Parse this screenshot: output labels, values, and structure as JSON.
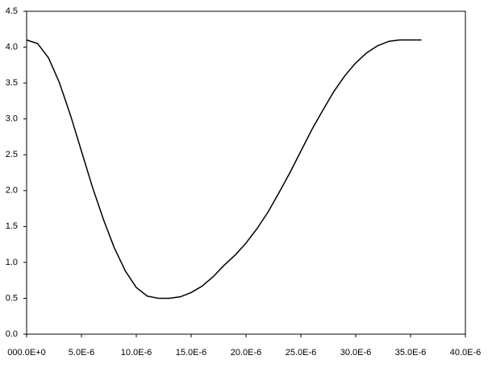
{
  "chart_data": {
    "type": "line",
    "x": [
      0,
      1e-06,
      2e-06,
      3e-06,
      4e-06,
      5e-06,
      6e-06,
      7e-06,
      8e-06,
      9e-06,
      1e-05,
      1.1e-05,
      1.2e-05,
      1.3e-05,
      1.4e-05,
      1.5e-05,
      1.6e-05,
      1.7e-05,
      1.8e-05,
      1.9e-05,
      2e-05,
      2.1e-05,
      2.2e-05,
      2.3e-05,
      2.4e-05,
      2.5e-05,
      2.6e-05,
      2.7e-05,
      2.8e-05,
      2.9e-05,
      3e-05,
      3.1e-05,
      3.2e-05,
      3.3e-05,
      3.4e-05,
      3.5e-05,
      3.6e-05
    ],
    "series": [
      {
        "color": "#000000",
        "values": [
          4.1,
          4.05,
          3.85,
          3.5,
          3.05,
          2.55,
          2.05,
          1.6,
          1.2,
          0.88,
          0.65,
          0.53,
          0.5,
          0.5,
          0.52,
          0.58,
          0.67,
          0.8,
          0.96,
          1.1,
          1.27,
          1.47,
          1.7,
          1.97,
          2.25,
          2.55,
          2.85,
          3.12,
          3.38,
          3.6,
          3.78,
          3.92,
          4.02,
          4.08,
          4.1,
          4.1,
          4.1
        ]
      }
    ],
    "xlim": [
      0,
      4e-05
    ],
    "xticks": [
      {
        "value": 0,
        "label": "000.0E+0"
      },
      {
        "value": 5e-06,
        "label": "5.0E-6"
      },
      {
        "value": 1e-05,
        "label": "10.0E-6"
      },
      {
        "value": 1.5e-05,
        "label": "15.0E-6"
      },
      {
        "value": 2e-05,
        "label": "20.0E-6"
      },
      {
        "value": 2.5e-05,
        "label": "25.0E-6"
      },
      {
        "value": 3e-05,
        "label": "30.0E-6"
      },
      {
        "value": 3.5e-05,
        "label": "35.0E-6"
      },
      {
        "value": 4e-05,
        "label": "40.0E-6"
      }
    ],
    "ylim": [
      0,
      4.5
    ],
    "yticks": [
      {
        "value": 0,
        "label": "0.0"
      },
      0.5,
      {
        "value": 1,
        "label": "1.0"
      },
      1.5,
      {
        "value": 2,
        "label": "2.0"
      },
      2.5,
      {
        "value": 3,
        "label": "3.0"
      },
      3.5,
      {
        "value": 4,
        "label": "4.0"
      },
      4.5
    ],
    "grid": false
  }
}
